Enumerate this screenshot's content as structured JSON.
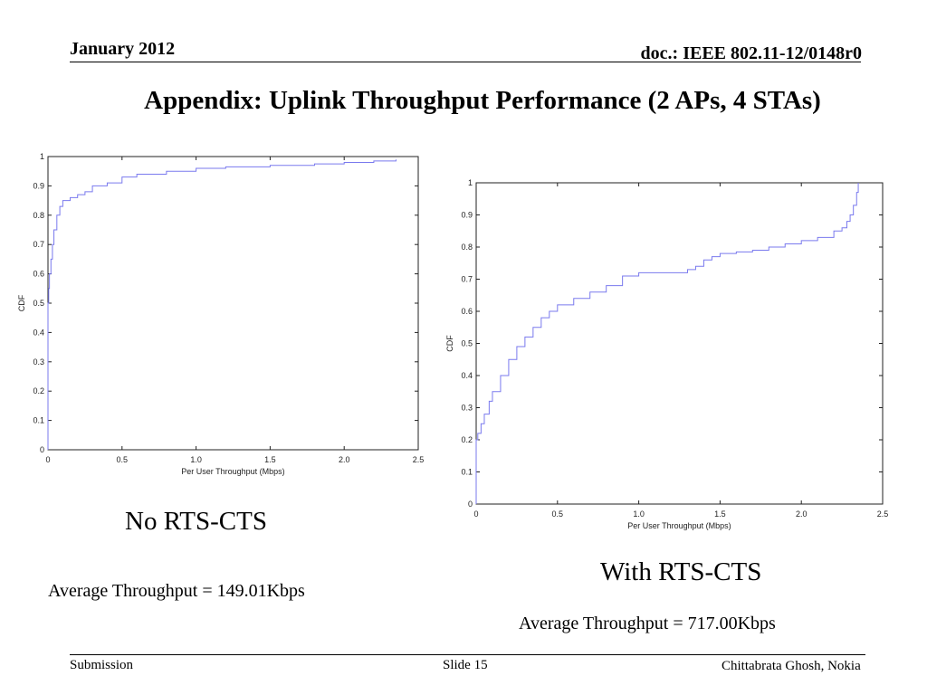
{
  "header": {
    "date": "January 2012",
    "doc": "doc.: IEEE 802.11-12/0148r0"
  },
  "title": "Appendix: Uplink Throughput Performance (2 APs, 4 STAs)",
  "captions": {
    "left_label": "No RTS-CTS",
    "left_avg": "Average Throughput = 149.01Kbps",
    "right_label": "With RTS-CTS",
    "right_avg": "Average Throughput = 717.00Kbps"
  },
  "footer": {
    "left": "Submission",
    "center": "Slide 15",
    "right": "Chittabrata Ghosh, Nokia"
  },
  "colors": {
    "line": "#7a7aee",
    "axis": "#222222"
  },
  "chart_data": [
    {
      "type": "line",
      "title": "",
      "xlabel": "Per User Throughput (Mbps)",
      "ylabel": "CDF",
      "xlim": [
        0,
        2.5
      ],
      "ylim": [
        0,
        1
      ],
      "xticks": [
        "0",
        "0.5",
        "1.0",
        "1.5",
        "2.0",
        "2.5"
      ],
      "xtick_values": [
        0,
        0.5,
        1.0,
        1.5,
        2.0,
        2.5
      ],
      "yticks": [
        "0",
        "0.1",
        "0.2",
        "0.3",
        "0.4",
        "0.5",
        "0.6",
        "0.7",
        "0.8",
        "0.9",
        "1"
      ],
      "ytick_values": [
        0,
        0.1,
        0.2,
        0.3,
        0.4,
        0.5,
        0.6,
        0.7,
        0.8,
        0.9,
        1.0
      ],
      "grid": false,
      "series": [
        {
          "x": [
            0,
            0,
            0.005,
            0.01,
            0.02,
            0.03,
            0.04,
            0.06,
            0.08,
            0.1,
            0.15,
            0.2,
            0.25,
            0.3,
            0.4,
            0.5,
            0.6,
            0.8,
            1.0,
            1.2,
            1.5,
            1.8,
            2.0,
            2.2,
            2.35
          ],
          "y": [
            0,
            0.5,
            0.55,
            0.6,
            0.65,
            0.7,
            0.75,
            0.8,
            0.83,
            0.85,
            0.86,
            0.87,
            0.88,
            0.9,
            0.91,
            0.93,
            0.94,
            0.95,
            0.96,
            0.965,
            0.97,
            0.975,
            0.98,
            0.985,
            0.99
          ]
        }
      ]
    },
    {
      "type": "line",
      "title": "",
      "xlabel": "Per User Throughput (Mbps)",
      "ylabel": "CDF",
      "xlim": [
        0,
        2.5
      ],
      "ylim": [
        0,
        1
      ],
      "xticks": [
        "0",
        "0.5",
        "1.0",
        "1.5",
        "2.0",
        "2.5"
      ],
      "xtick_values": [
        0,
        0.5,
        1.0,
        1.5,
        2.0,
        2.5
      ],
      "yticks": [
        "0",
        "0.1",
        "0.2",
        "0.3",
        "0.4",
        "0.5",
        "0.6",
        "0.7",
        "0.8",
        "0.9",
        "1"
      ],
      "ytick_values": [
        0,
        0.1,
        0.2,
        0.3,
        0.4,
        0.5,
        0.6,
        0.7,
        0.8,
        0.9,
        1.0
      ],
      "grid": false,
      "series": [
        {
          "x": [
            0,
            0,
            0.01,
            0.03,
            0.05,
            0.08,
            0.1,
            0.15,
            0.2,
            0.25,
            0.3,
            0.35,
            0.4,
            0.45,
            0.5,
            0.6,
            0.7,
            0.8,
            0.9,
            1.0,
            1.1,
            1.2,
            1.3,
            1.35,
            1.4,
            1.45,
            1.5,
            1.6,
            1.7,
            1.8,
            1.9,
            2.0,
            2.1,
            2.2,
            2.25,
            2.28,
            2.3,
            2.32,
            2.34,
            2.35
          ],
          "y": [
            0,
            0.2,
            0.22,
            0.25,
            0.28,
            0.32,
            0.35,
            0.4,
            0.45,
            0.49,
            0.52,
            0.55,
            0.58,
            0.6,
            0.62,
            0.64,
            0.66,
            0.68,
            0.71,
            0.72,
            0.72,
            0.72,
            0.73,
            0.74,
            0.76,
            0.77,
            0.78,
            0.785,
            0.79,
            0.8,
            0.81,
            0.82,
            0.83,
            0.85,
            0.86,
            0.88,
            0.9,
            0.93,
            0.97,
            1.0
          ]
        }
      ]
    }
  ]
}
